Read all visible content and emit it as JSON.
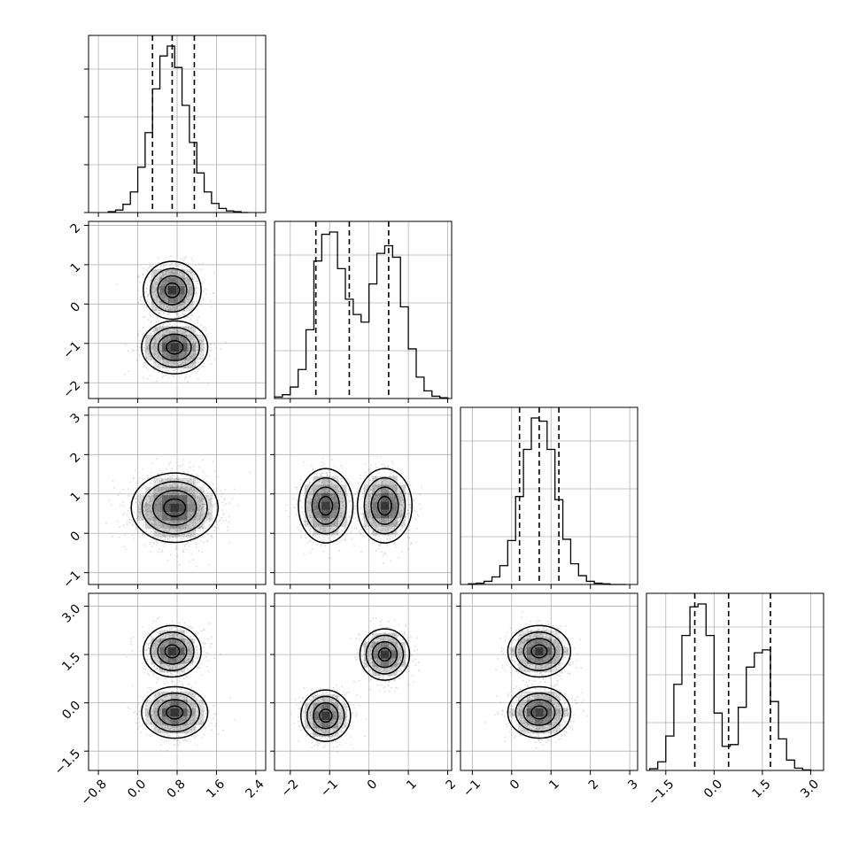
{
  "chart_data": {
    "type": "corner",
    "grid": true,
    "ticks": {
      "x0": [
        "−0.8",
        "0.0",
        "0.8",
        "1.6",
        "2.4"
      ],
      "y1": [
        "2",
        "1",
        "0",
        "−1",
        "−2"
      ],
      "x1": [
        "−2",
        "−1",
        "0",
        "1",
        "2"
      ],
      "y2": [
        "3",
        "2",
        "1",
        "0",
        "−1"
      ],
      "x2": [
        "−1",
        "0",
        "1",
        "2",
        "3"
      ],
      "y3": [
        "3.0",
        "1.5",
        "0.0",
        "−1.5"
      ],
      "x3": [
        "−1.5",
        "0.0",
        "1.5",
        "3.0"
      ]
    },
    "params": [
      {
        "range": [
          -1.0,
          2.6
        ],
        "quantiles": [
          0.3,
          0.7,
          1.15
        ]
      },
      {
        "range": [
          -2.4,
          2.1
        ],
        "quantiles": [
          -1.35,
          -0.5,
          0.5
        ]
      },
      {
        "range": [
          -1.3,
          3.2
        ],
        "quantiles": [
          0.2,
          0.7,
          1.2
        ]
      },
      {
        "range": [
          -2.1,
          3.4
        ],
        "quantiles": [
          -0.6,
          0.45,
          1.75
        ]
      }
    ],
    "histograms": [
      {
        "param": 0,
        "bin_edges": [
          -0.6,
          -0.45,
          -0.3,
          -0.15,
          0.0,
          0.15,
          0.3,
          0.45,
          0.6,
          0.75,
          0.9,
          1.05,
          1.2,
          1.35,
          1.5,
          1.65,
          1.8,
          1.95,
          2.1,
          2.25
        ],
        "counts": [
          1,
          3,
          10,
          25,
          55,
          97,
          150,
          190,
          202,
          176,
          130,
          85,
          48,
          25,
          11,
          5,
          2,
          1,
          0
        ]
      },
      {
        "param": 1,
        "bin_edges": [
          -2.4,
          -2.2,
          -2.0,
          -1.8,
          -1.6,
          -1.4,
          -1.2,
          -1.0,
          -0.8,
          -0.6,
          -0.4,
          -0.2,
          0.0,
          0.2,
          0.4,
          0.6,
          0.8,
          1.0,
          1.2,
          1.4,
          1.6,
          1.8,
          2.0
        ],
        "counts": [
          2,
          5,
          15,
          38,
          90,
          180,
          215,
          218,
          170,
          130,
          110,
          100,
          150,
          190,
          200,
          185,
          120,
          65,
          28,
          10,
          3,
          1
        ]
      },
      {
        "param": 2,
        "bin_edges": [
          -1.1,
          -0.9,
          -0.7,
          -0.5,
          -0.3,
          -0.1,
          0.1,
          0.3,
          0.5,
          0.7,
          0.9,
          1.1,
          1.3,
          1.5,
          1.7,
          1.9,
          2.1,
          2.3,
          2.5,
          2.7,
          2.9
        ],
        "counts": [
          1,
          2,
          5,
          12,
          30,
          70,
          140,
          215,
          265,
          260,
          215,
          135,
          72,
          33,
          14,
          5,
          2,
          1,
          0,
          0
        ]
      },
      {
        "param": 3,
        "bin_edges": [
          -2.0,
          -1.75,
          -1.5,
          -1.25,
          -1.0,
          -0.75,
          -0.5,
          -0.25,
          0.0,
          0.25,
          0.5,
          0.75,
          1.0,
          1.25,
          1.5,
          1.75,
          2.0,
          2.25,
          2.5,
          2.75,
          3.0
        ],
        "counts": [
          3,
          15,
          60,
          150,
          235,
          285,
          290,
          235,
          100,
          42,
          45,
          110,
          180,
          205,
          210,
          120,
          55,
          18,
          4,
          1
        ]
      }
    ],
    "scatter_pairs": [
      {
        "x_param": 0,
        "y_param": 1,
        "clusters": [
          {
            "center": [
              0.7,
              0.35
            ],
            "sd": [
              0.28,
              0.35
            ],
            "n": 1600
          },
          {
            "center": [
              0.75,
              -1.1
            ],
            "sd": [
              0.32,
              0.32
            ],
            "n": 1700
          }
        ]
      },
      {
        "x_param": 0,
        "y_param": 2,
        "clusters": [
          {
            "center": [
              0.75,
              0.65
            ],
            "sd": [
              0.42,
              0.42
            ],
            "n": 3000
          }
        ]
      },
      {
        "x_param": 1,
        "y_param": 2,
        "clusters": [
          {
            "center": [
              -1.1,
              0.7
            ],
            "sd": [
              0.33,
              0.45
            ],
            "n": 1500
          },
          {
            "center": [
              0.4,
              0.7
            ],
            "sd": [
              0.33,
              0.45
            ],
            "n": 1500
          }
        ]
      },
      {
        "x_param": 0,
        "y_param": 3,
        "clusters": [
          {
            "center": [
              0.7,
              1.6
            ],
            "sd": [
              0.28,
              0.38
            ],
            "n": 1500
          },
          {
            "center": [
              0.75,
              -0.3
            ],
            "sd": [
              0.32,
              0.38
            ],
            "n": 1500
          }
        ]
      },
      {
        "x_param": 1,
        "y_param": 3,
        "clusters": [
          {
            "center": [
              -1.1,
              -0.4
            ],
            "sd": [
              0.3,
              0.38
            ],
            "n": 1500
          },
          {
            "center": [
              0.4,
              1.5
            ],
            "sd": [
              0.3,
              0.38
            ],
            "n": 1500
          }
        ]
      },
      {
        "x_param": 2,
        "y_param": 3,
        "clusters": [
          {
            "center": [
              0.7,
              1.6
            ],
            "sd": [
              0.38,
              0.38
            ],
            "n": 1500
          },
          {
            "center": [
              0.7,
              -0.3
            ],
            "sd": [
              0.38,
              0.38
            ],
            "n": 1500
          }
        ]
      }
    ],
    "contour_levels_sigma": [
      0.5,
      1.0,
      1.5,
      2.0
    ],
    "colors": {
      "density": "#000000",
      "line": "#000000",
      "grid": "#b0b0b0",
      "points": "#000000"
    }
  }
}
